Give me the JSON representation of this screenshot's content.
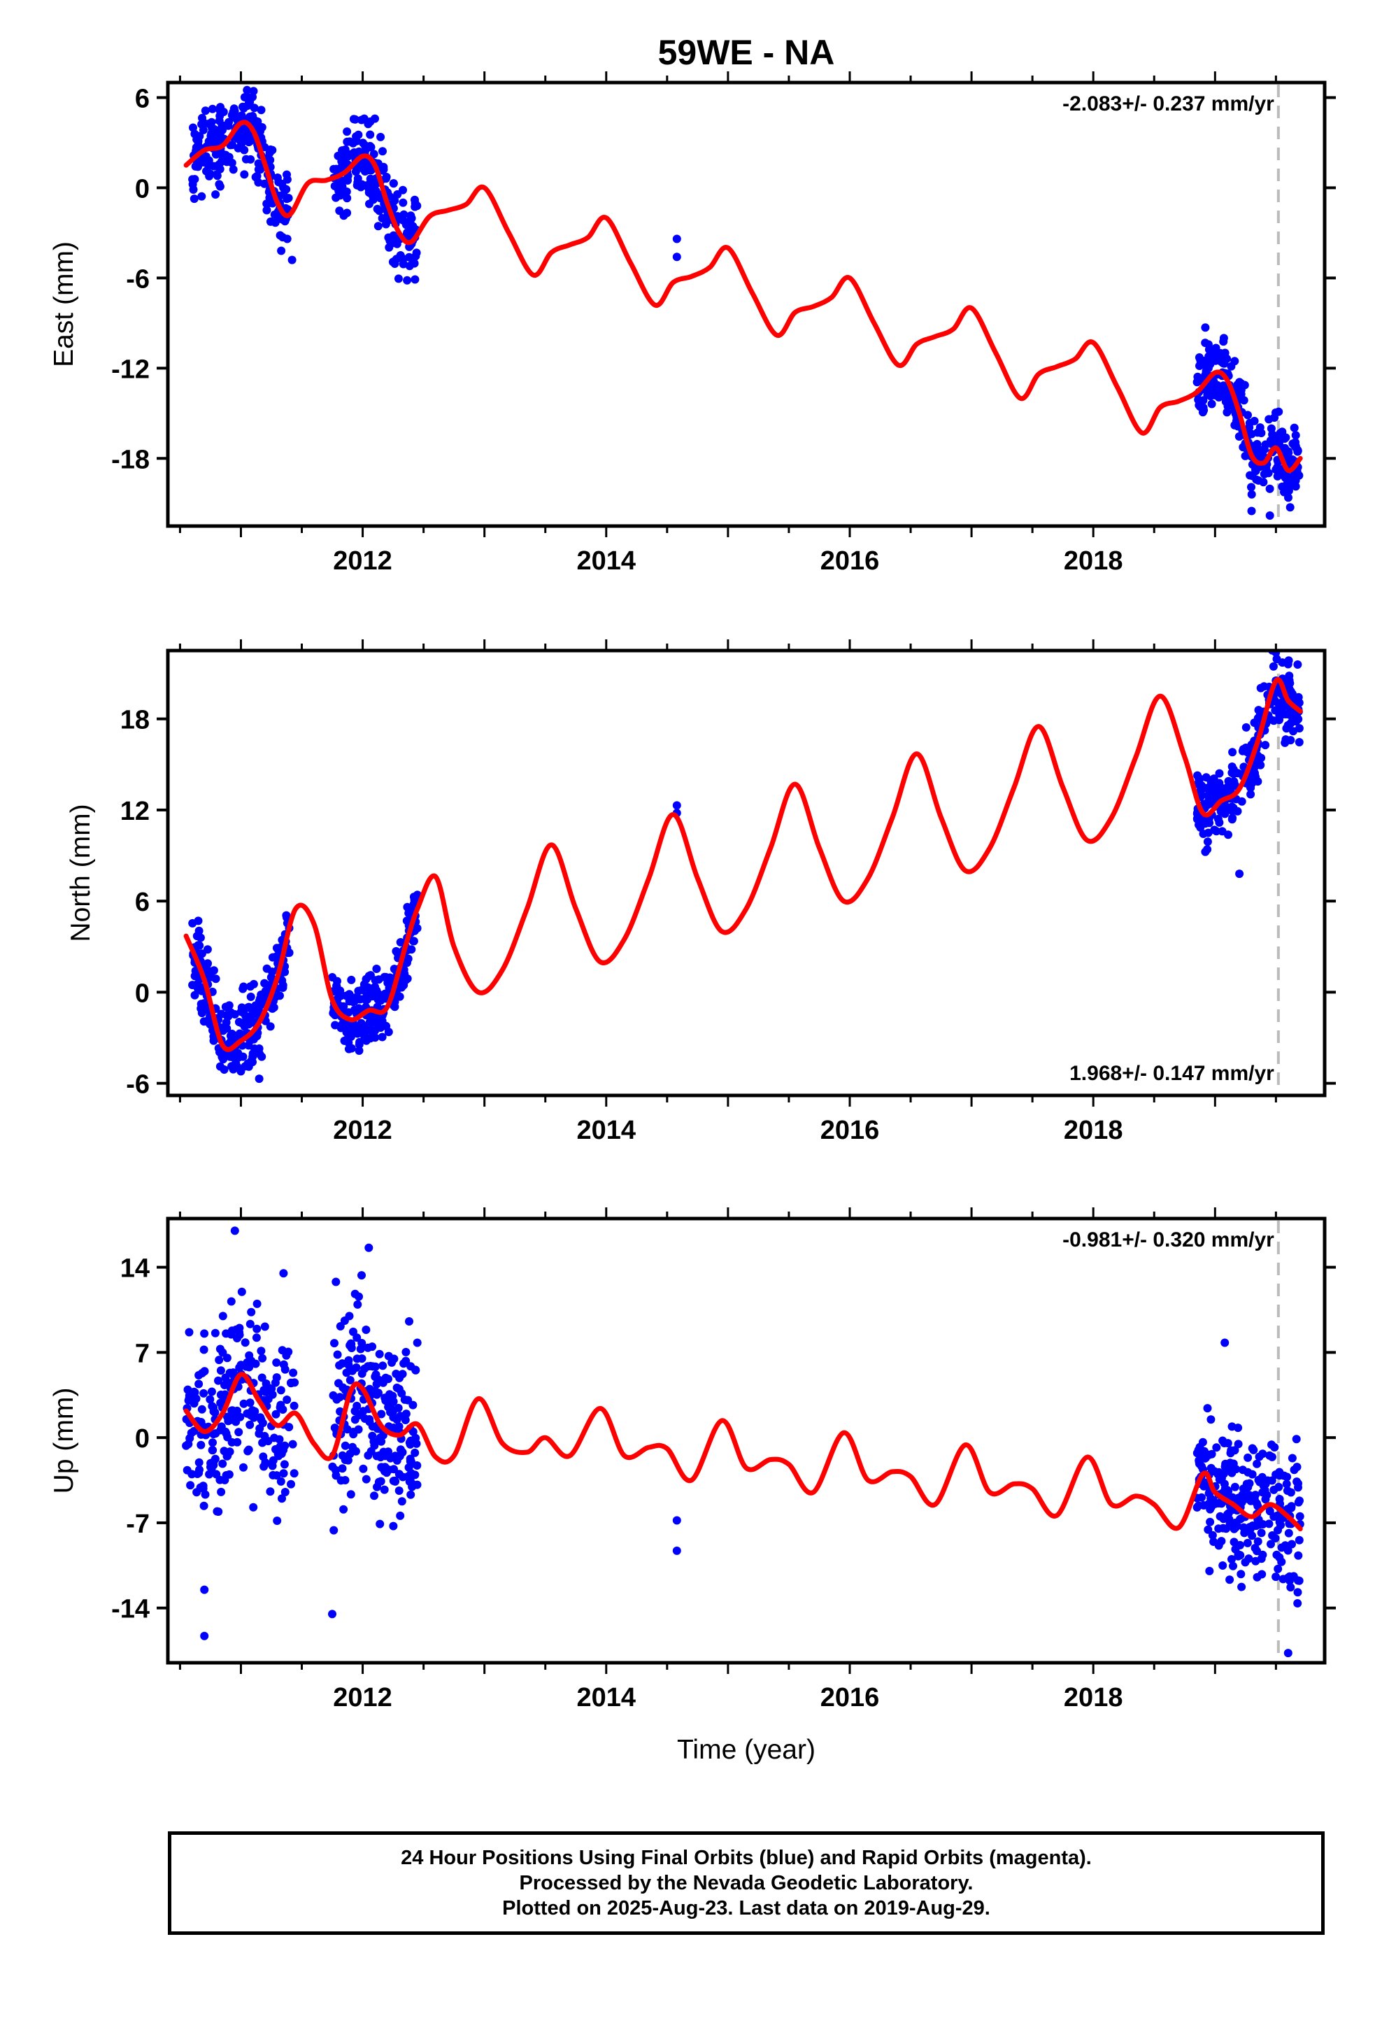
{
  "figure": {
    "title": "59WE - NA",
    "xlabel": "Time (year)",
    "x_ticks": [
      "2012",
      "2014",
      "2016",
      "2018"
    ],
    "caption_lines": [
      "24 Hour Positions Using Final Orbits (blue) and Rapid Orbits (magenta).",
      "Processed by the Nevada Geodetic Laboratory.",
      "Plotted on 2025-Aug-23. Last data on 2019-Aug-29."
    ],
    "colors": {
      "points": "#0000ff",
      "model": "#ff0000",
      "marker_line": "#bbbbbb",
      "frame": "#000000"
    }
  },
  "chart_data": [
    {
      "type": "scatter",
      "panel": "east",
      "ylabel": "East (mm)",
      "rate_label": "-2.083+/- 0.237 mm/yr",
      "rate_position": "top-right",
      "xlim": [
        2010.4,
        2019.9
      ],
      "ylim": [
        -22.5,
        7
      ],
      "y_ticks": [
        6,
        0,
        -6,
        -12,
        -18
      ],
      "y_tick_labels": [
        "6",
        "0",
        "-6",
        "-12",
        "-18"
      ],
      "x_ticks": [
        2012,
        2014,
        2016,
        2018
      ],
      "vline_x": 2019.52,
      "model": {
        "x": [
          2010.55,
          2010.7,
          2010.85,
          2011.0,
          2011.1,
          2011.2,
          2011.3,
          2011.4,
          2011.55,
          2011.7,
          2011.85,
          2012.0,
          2012.1,
          2012.2,
          2012.3,
          2012.4,
          2012.55,
          2012.7,
          2012.85,
          2013.0,
          2013.2,
          2013.4,
          2013.55,
          2013.7,
          2013.85,
          2014.0,
          2014.2,
          2014.4,
          2014.55,
          2014.7,
          2014.85,
          2015.0,
          2015.2,
          2015.4,
          2015.55,
          2015.7,
          2015.85,
          2016.0,
          2016.2,
          2016.4,
          2016.55,
          2016.7,
          2016.85,
          2017.0,
          2017.2,
          2017.4,
          2017.55,
          2017.7,
          2017.85,
          2018.0,
          2018.2,
          2018.4,
          2018.55,
          2018.7,
          2018.85,
          2019.0,
          2019.1,
          2019.2,
          2019.3,
          2019.4,
          2019.5,
          2019.6,
          2019.7
        ],
        "y": [
          1.5,
          2.5,
          2.8,
          4.3,
          3.8,
          1.5,
          -1.0,
          -1.8,
          0.3,
          0.5,
          1.0,
          2.1,
          1.5,
          -1.0,
          -3.0,
          -3.6,
          -1.9,
          -1.5,
          -1.1,
          0.0,
          -3.0,
          -5.8,
          -4.3,
          -3.8,
          -3.3,
          -2.0,
          -5.0,
          -7.8,
          -6.3,
          -5.9,
          -5.3,
          -4.0,
          -7.0,
          -9.8,
          -8.3,
          -7.9,
          -7.3,
          -6.0,
          -9.0,
          -11.8,
          -10.4,
          -9.9,
          -9.4,
          -8.0,
          -11.0,
          -14.0,
          -12.4,
          -11.9,
          -11.4,
          -10.3,
          -13.3,
          -16.3,
          -14.6,
          -14.2,
          -13.6,
          -12.3,
          -12.8,
          -15.0,
          -17.8,
          -18.3,
          -17.3,
          -18.8,
          -18.0
        ]
      },
      "clusters": [
        {
          "x0": 2010.6,
          "x1": 2011.4,
          "dy": 1.3,
          "n": 260,
          "outliers": [
            [
              2011.42,
              -4.8
            ],
            [
              2011.05,
              6.5
            ]
          ]
        },
        {
          "x0": 2011.75,
          "x1": 2012.45,
          "dy": 1.3,
          "n": 230,
          "outliers": [
            [
              2012.43,
              -6.1
            ],
            [
              2012.1,
              4.6
            ]
          ]
        },
        {
          "x0": 2014.57,
          "x1": 2014.58,
          "dy": 0.0,
          "n": 0,
          "outliers": [
            [
              2014.58,
              -3.4
            ],
            [
              2014.58,
              -4.6
            ]
          ]
        },
        {
          "x0": 2018.85,
          "x1": 2019.7,
          "dy": 1.2,
          "n": 270,
          "outliers": [
            [
              2019.45,
              -21.8
            ],
            [
              2019.3,
              -21.5
            ],
            [
              2018.92,
              -9.3
            ]
          ]
        }
      ]
    },
    {
      "type": "scatter",
      "panel": "north",
      "ylabel": "North (mm)",
      "rate_label": "1.968+/- 0.147 mm/yr",
      "rate_position": "bottom-right",
      "xlim": [
        2010.4,
        2019.9
      ],
      "ylim": [
        -6.8,
        22.5
      ],
      "y_ticks": [
        18,
        12,
        6,
        0,
        -6
      ],
      "y_tick_labels": [
        "18",
        "12",
        "6",
        "0",
        "-6"
      ],
      "x_ticks": [
        2012,
        2014,
        2016,
        2018
      ],
      "vline_x": 2019.52,
      "model": {
        "x": [
          2010.55,
          2010.7,
          2010.85,
          2011.0,
          2011.15,
          2011.3,
          2011.45,
          2011.6,
          2011.75,
          2011.9,
          2012.05,
          2012.2,
          2012.35,
          2012.45,
          2012.6,
          2012.75,
          2012.95,
          2013.15,
          2013.35,
          2013.55,
          2013.75,
          2013.95,
          2014.15,
          2014.35,
          2014.55,
          2014.75,
          2014.95,
          2015.15,
          2015.35,
          2015.55,
          2015.75,
          2015.95,
          2016.15,
          2016.35,
          2016.55,
          2016.75,
          2016.95,
          2017.15,
          2017.35,
          2017.55,
          2017.75,
          2017.95,
          2018.15,
          2018.35,
          2018.55,
          2018.75,
          2018.9,
          2019.05,
          2019.2,
          2019.35,
          2019.5,
          2019.6,
          2019.7
        ],
        "y": [
          3.7,
          0.8,
          -3.5,
          -3.2,
          -2.0,
          1.0,
          5.5,
          4.5,
          -0.5,
          -1.8,
          -1.2,
          -1.0,
          3.0,
          5.5,
          7.6,
          3.0,
          0.0,
          1.5,
          5.5,
          9.7,
          5.5,
          2.0,
          3.5,
          7.5,
          11.7,
          7.5,
          4.0,
          5.5,
          9.5,
          13.7,
          9.5,
          6.0,
          7.5,
          11.5,
          15.7,
          11.5,
          8.0,
          9.5,
          13.5,
          17.5,
          13.5,
          10.0,
          11.5,
          15.5,
          19.5,
          15.5,
          11.8,
          12.6,
          13.4,
          16.5,
          20.5,
          19.2,
          18.5
        ]
      },
      "clusters": [
        {
          "x0": 2010.6,
          "x1": 2011.4,
          "dy": 1.3,
          "n": 260,
          "outliers": [
            [
              2011.15,
              -5.7
            ],
            [
              2010.65,
              4.7
            ]
          ]
        },
        {
          "x0": 2011.75,
          "x1": 2012.45,
          "dy": 1.2,
          "n": 230,
          "outliers": [
            [
              2012.42,
              5.8
            ],
            [
              2011.85,
              -3.2
            ]
          ]
        },
        {
          "x0": 2014.57,
          "x1": 2014.58,
          "dy": 0.0,
          "n": 0,
          "outliers": [
            [
              2014.58,
              12.3
            ],
            [
              2014.58,
              11.8
            ]
          ]
        },
        {
          "x0": 2018.85,
          "x1": 2019.7,
          "dy": 1.2,
          "n": 270,
          "outliers": [
            [
              2019.2,
              7.8
            ],
            [
              2019.6,
              21.6
            ],
            [
              2019.62,
              16.6
            ]
          ]
        }
      ]
    },
    {
      "type": "scatter",
      "panel": "up",
      "ylabel": "Up (mm)",
      "rate_label": "-0.981+/- 0.320 mm/yr",
      "rate_position": "top-right",
      "xlim": [
        2010.4,
        2019.9
      ],
      "ylim": [
        -18.5,
        18
      ],
      "y_ticks": [
        14,
        7,
        0,
        -7,
        -14
      ],
      "y_tick_labels": [
        "14",
        "7",
        "0",
        "-7",
        "-14"
      ],
      "x_ticks": [
        2012,
        2014,
        2016,
        2018
      ],
      "vline_x": 2019.52,
      "model": {
        "x": [
          2010.55,
          2010.7,
          2010.85,
          2011.0,
          2011.15,
          2011.3,
          2011.45,
          2011.6,
          2011.75,
          2011.9,
          2012.0,
          2012.15,
          2012.3,
          2012.45,
          2012.6,
          2012.75,
          2012.95,
          2013.15,
          2013.35,
          2013.5,
          2013.7,
          2013.95,
          2014.15,
          2014.35,
          2014.5,
          2014.7,
          2014.95,
          2015.15,
          2015.35,
          2015.5,
          2015.7,
          2015.95,
          2016.15,
          2016.35,
          2016.5,
          2016.7,
          2016.95,
          2017.15,
          2017.35,
          2017.5,
          2017.7,
          2017.95,
          2018.15,
          2018.35,
          2018.5,
          2018.7,
          2018.9,
          2019.0,
          2019.15,
          2019.3,
          2019.45,
          2019.6,
          2019.7
        ],
        "y": [
          2.2,
          0.5,
          2.0,
          5.2,
          3.0,
          1.0,
          2.0,
          -0.5,
          -1.5,
          3.8,
          4.0,
          1.0,
          0.2,
          1.1,
          -1.6,
          -1.5,
          3.2,
          -0.5,
          -1.2,
          0.0,
          -1.5,
          2.4,
          -1.5,
          -0.8,
          -0.9,
          -3.5,
          1.4,
          -2.5,
          -1.8,
          -2.2,
          -4.5,
          0.4,
          -3.5,
          -2.8,
          -3.2,
          -5.5,
          -0.6,
          -4.5,
          -3.8,
          -4.2,
          -6.4,
          -1.6,
          -5.5,
          -4.8,
          -5.5,
          -7.4,
          -3.0,
          -4.5,
          -5.5,
          -6.5,
          -5.5,
          -6.5,
          -7.5
        ]
      },
      "clusters": [
        {
          "x0": 2010.55,
          "x1": 2011.45,
          "dy": 3.6,
          "n": 240,
          "outliers": [
            [
              2010.7,
              -16.3
            ],
            [
              2010.95,
              17.0
            ],
            [
              2010.7,
              -12.5
            ],
            [
              2011.35,
              13.5
            ]
          ]
        },
        {
          "x0": 2011.75,
          "x1": 2012.45,
          "dy": 3.6,
          "n": 220,
          "outliers": [
            [
              2011.75,
              -14.5
            ],
            [
              2012.05,
              15.6
            ],
            [
              2011.78,
              12.8
            ]
          ]
        },
        {
          "x0": 2014.57,
          "x1": 2014.58,
          "dy": 0.0,
          "n": 0,
          "outliers": [
            [
              2014.58,
              -6.8
            ],
            [
              2014.58,
              -9.3
            ]
          ]
        },
        {
          "x0": 2018.85,
          "x1": 2019.7,
          "dy": 3.0,
          "n": 260,
          "outliers": [
            [
              2019.6,
              -17.7
            ],
            [
              2019.08,
              7.8
            ],
            [
              2019.62,
              -12.3
            ]
          ]
        }
      ]
    }
  ]
}
